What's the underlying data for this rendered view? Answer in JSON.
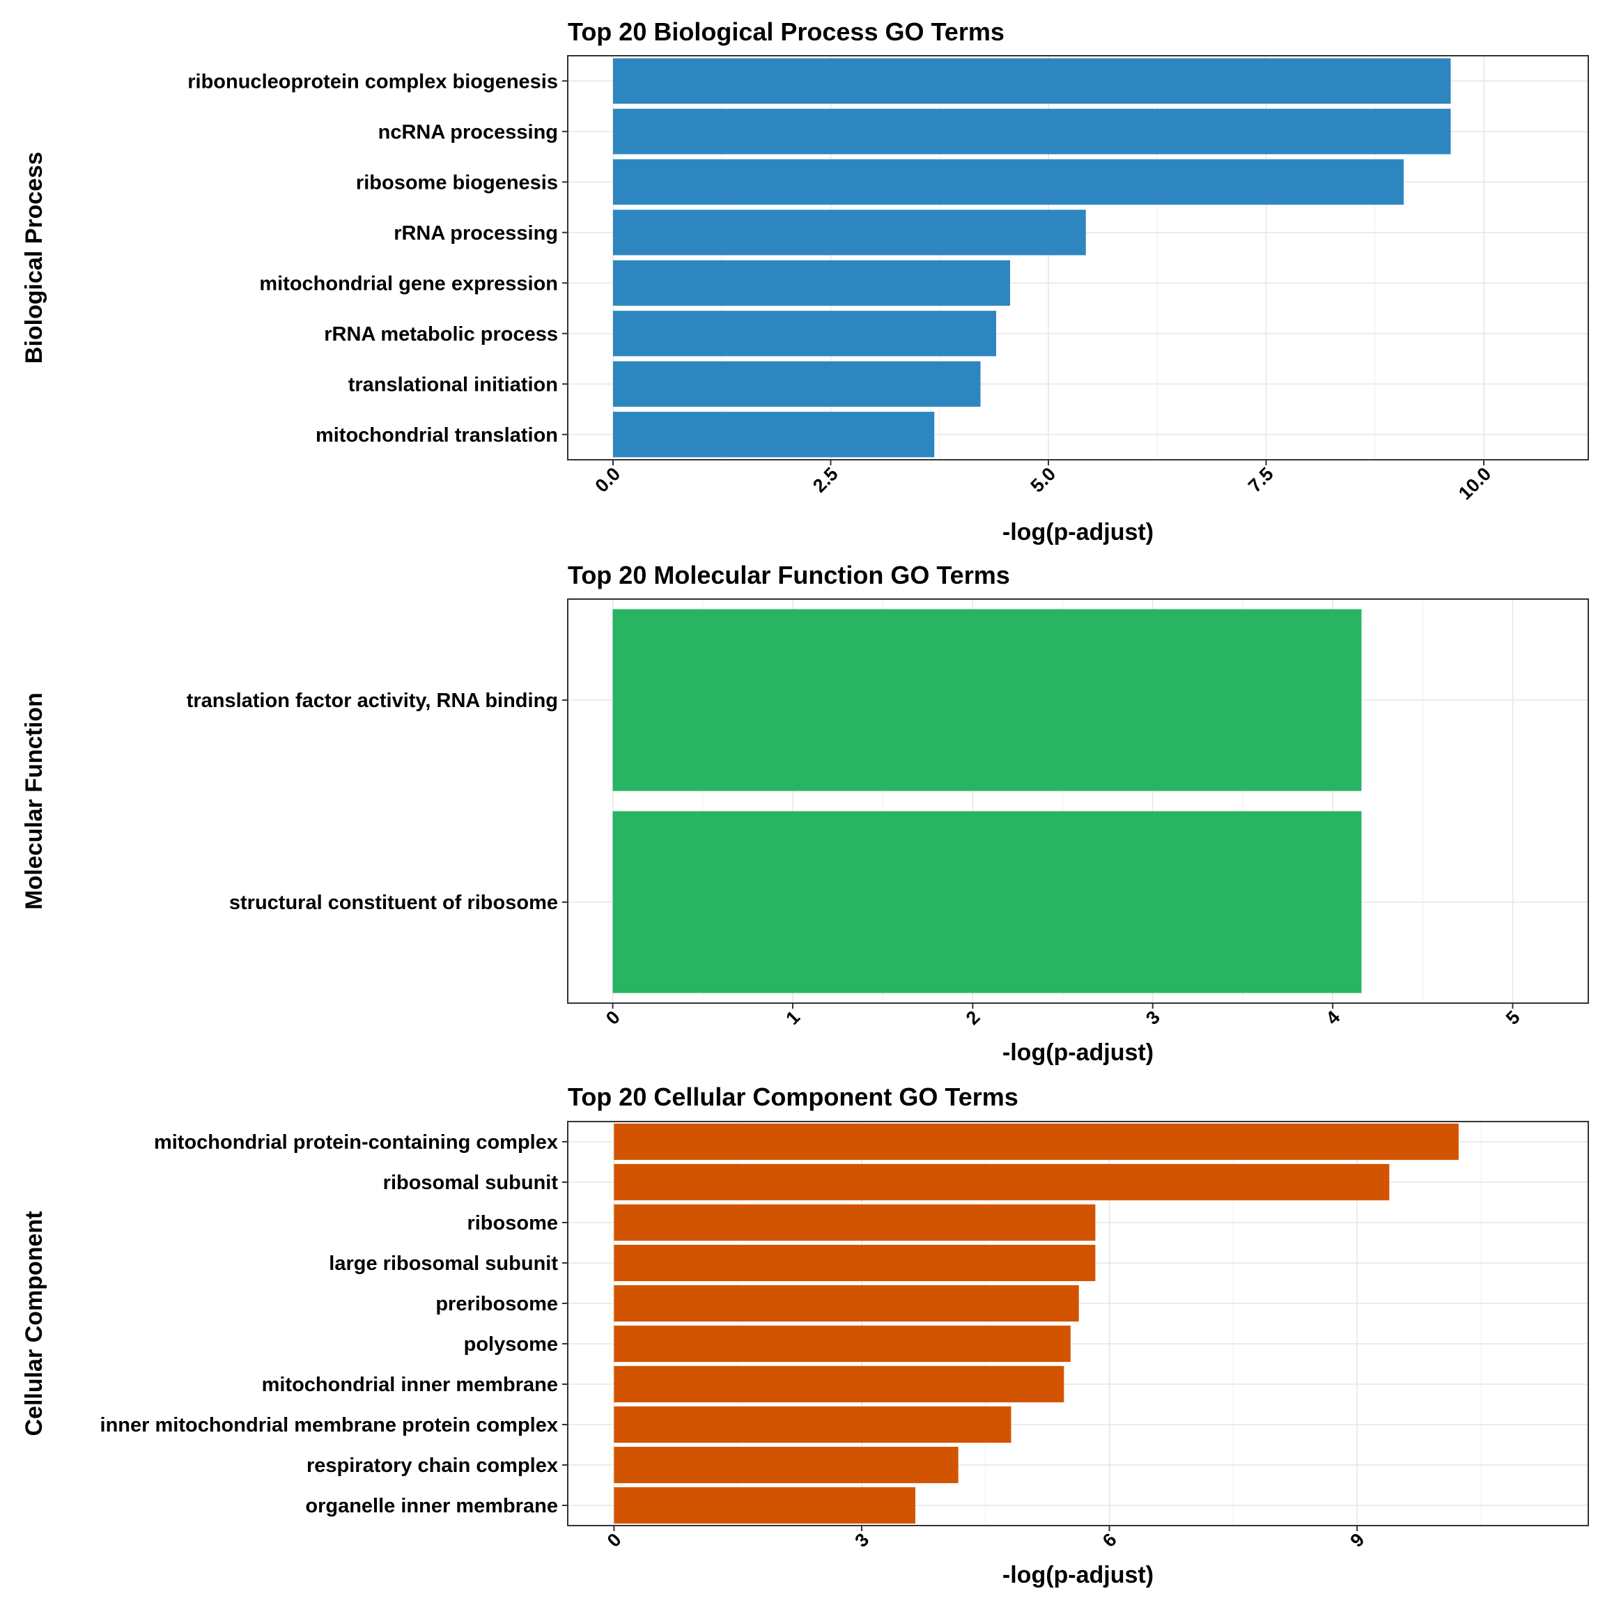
{
  "chart_data": [
    {
      "type": "bar",
      "orientation": "horizontal",
      "title": "Top 20 Biological Process GO Terms",
      "xlabel": "-log(p-adjust)",
      "ylabel": "Biological Process",
      "color": "#2E86C1",
      "categories": [
        "ribonucleoprotein complex biogenesis",
        "ncRNA processing",
        "ribosome biogenesis",
        "rRNA processing",
        "mitochondrial gene expression",
        "rRNA metabolic process",
        "translational initiation",
        "mitochondrial translation"
      ],
      "values": [
        9.62,
        9.62,
        9.08,
        5.43,
        4.56,
        4.4,
        4.22,
        3.69
      ],
      "xlim": [
        -0.52,
        11.2
      ],
      "xticks": [
        "0.0",
        "2.5",
        "5.0",
        "7.5",
        "10.0"
      ],
      "xtick_values": [
        0,
        2.5,
        5,
        7.5,
        10
      ],
      "grid": true
    },
    {
      "type": "bar",
      "orientation": "horizontal",
      "title": "Top 20 Molecular Function GO Terms",
      "xlabel": "-log(p-adjust)",
      "ylabel": "Molecular Function",
      "color": "#28B463",
      "categories": [
        "translation factor activity, RNA binding",
        "structural constituent of ribosome"
      ],
      "values": [
        4.16,
        4.16
      ],
      "xlim": [
        -0.25,
        5.42
      ],
      "xticks": [
        "0",
        "1",
        "2",
        "3",
        "4",
        "5"
      ],
      "xtick_values": [
        0,
        1,
        2,
        3,
        4,
        5
      ],
      "grid": true
    },
    {
      "type": "bar",
      "orientation": "horizontal",
      "title": "Top 20 Cellular Component GO Terms",
      "xlabel": "-log(p-adjust)",
      "ylabel": "Cellular Component",
      "color": "#D35400",
      "categories": [
        "mitochondrial protein-containing complex",
        "ribosomal subunit",
        "ribosome",
        "large ribosomal subunit",
        "preribosome",
        "polysome",
        "mitochondrial inner membrane",
        "inner mitochondrial membrane protein complex",
        "respiratory chain complex",
        "organelle inner membrane"
      ],
      "values": [
        10.23,
        9.39,
        5.83,
        5.83,
        5.63,
        5.53,
        5.45,
        4.81,
        4.17,
        3.65
      ],
      "xlim": [
        -0.56,
        11.8
      ],
      "xticks": [
        "0",
        "3",
        "6",
        "9"
      ],
      "xtick_values": [
        0,
        3,
        6,
        9
      ],
      "grid": true
    }
  ]
}
